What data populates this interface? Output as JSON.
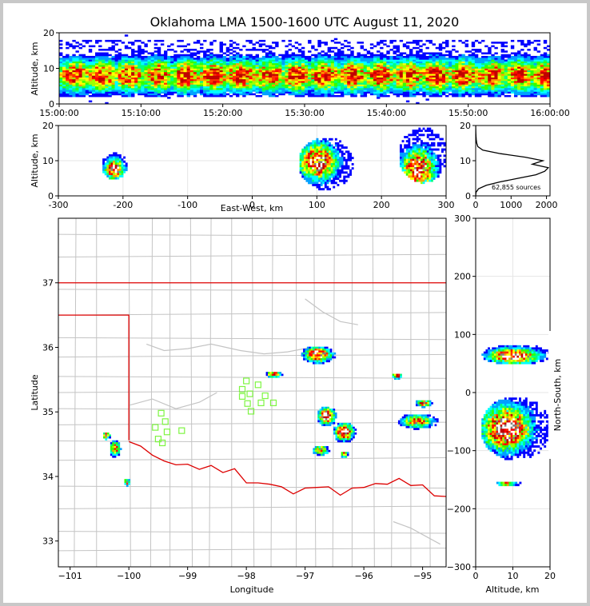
{
  "title": "Oklahoma LMA 1500-1600 UTC August 11, 2020",
  "colors": {
    "frame": "#c8c8c8",
    "state_line": "#dd0000",
    "county_line": "#c4c4c4",
    "station": "#7ef542"
  },
  "chart_data": [
    {
      "id": "time-height",
      "type": "heatmap",
      "ylabel": "Altitude, km",
      "x_ticks": [
        "15:00:00",
        "15:10:00",
        "15:20:00",
        "15:30:00",
        "15:40:00",
        "15:50:00",
        "16:00:00"
      ],
      "xlim": [
        "15:00:00",
        "16:00:00"
      ],
      "y_ticks": [
        0,
        10,
        20
      ],
      "ylim": [
        0,
        20
      ],
      "source_altitude_band_km": [
        2,
        18
      ],
      "peak_altitude_km": 8
    },
    {
      "id": "ew-height",
      "type": "heatmap",
      "xlabel": "East-West, km",
      "ylabel": "Altitude, km",
      "x_ticks": [
        -300,
        -200,
        -100,
        0,
        100,
        200,
        300
      ],
      "xlim": [
        -300,
        300
      ],
      "y_ticks": [
        0,
        10,
        20
      ],
      "ylim": [
        0,
        20
      ],
      "clusters": [
        {
          "x": [
            -235,
            -195
          ],
          "z": [
            5,
            13
          ],
          "peak": [
            -215,
            8
          ]
        },
        {
          "x": [
            70,
            155
          ],
          "z": [
            2,
            17
          ],
          "peak": [
            100,
            10
          ]
        },
        {
          "x": [
            225,
            300
          ],
          "z": [
            4,
            20
          ],
          "peak": [
            255,
            8
          ]
        }
      ]
    },
    {
      "id": "alt-hist",
      "type": "line",
      "x_ticks": [
        0,
        1000,
        2000
      ],
      "xlim": [
        0,
        2100
      ],
      "y_ticks": [
        0,
        10,
        20
      ],
      "ylim": [
        0,
        20
      ],
      "annotation": "62,855 sources",
      "altitude_km": [
        0,
        1,
        2,
        3,
        4,
        5,
        6,
        7,
        8,
        9,
        10,
        11,
        12,
        13,
        14,
        15,
        16,
        17,
        18,
        19,
        20
      ],
      "source_count": [
        0,
        10,
        80,
        300,
        700,
        1200,
        1700,
        1950,
        2050,
        1600,
        1900,
        1400,
        700,
        200,
        60,
        30,
        15,
        8,
        5,
        2,
        0
      ]
    },
    {
      "id": "plan-view",
      "type": "heatmap",
      "xlabel": "Longitude",
      "ylabel": "Latitude",
      "x_ticks": [
        -101,
        -100,
        -99,
        -98,
        -97,
        -96,
        -95
      ],
      "xlim": [
        -101.2,
        -94.6
      ],
      "y_ticks": [
        33,
        34,
        35,
        36,
        37
      ],
      "ylim": [
        32.6,
        38.0
      ],
      "clusters": [
        {
          "lon": -96.8,
          "lat": 35.9
        },
        {
          "lon": -96.65,
          "lat": 34.95
        },
        {
          "lon": -96.35,
          "lat": 34.7
        },
        {
          "lon": -96.75,
          "lat": 34.42
        },
        {
          "lon": -96.35,
          "lat": 34.36
        },
        {
          "lon": -95.1,
          "lat": 34.87
        },
        {
          "lon": -95.0,
          "lat": 35.15
        },
        {
          "lon": -100.25,
          "lat": 34.45
        },
        {
          "lon": -100.4,
          "lat": 34.65
        },
        {
          "lon": -100.05,
          "lat": 33.93
        },
        {
          "lon": -97.55,
          "lat": 35.6
        },
        {
          "lon": -95.45,
          "lat": 35.57
        }
      ],
      "stations": [
        {
          "lon": -98.0,
          "lat": 35.48
        },
        {
          "lon": -98.07,
          "lat": 35.35
        },
        {
          "lon": -97.94,
          "lat": 35.28
        },
        {
          "lon": -98.07,
          "lat": 35.24
        },
        {
          "lon": -97.8,
          "lat": 35.42
        },
        {
          "lon": -97.68,
          "lat": 35.25
        },
        {
          "lon": -97.75,
          "lat": 35.14
        },
        {
          "lon": -97.54,
          "lat": 35.14
        },
        {
          "lon": -97.98,
          "lat": 35.13
        },
        {
          "lon": -97.92,
          "lat": 35.01
        },
        {
          "lon": -99.45,
          "lat": 34.98
        },
        {
          "lon": -99.38,
          "lat": 34.85
        },
        {
          "lon": -99.55,
          "lat": 34.76
        },
        {
          "lon": -99.35,
          "lat": 34.69
        },
        {
          "lon": -99.5,
          "lat": 34.58
        },
        {
          "lon": -99.43,
          "lat": 34.52
        },
        {
          "lon": -99.1,
          "lat": 34.71
        }
      ]
    },
    {
      "id": "ns-height",
      "type": "heatmap",
      "xlabel": "Altitude, km",
      "ylabel": "North-South, km",
      "x_ticks": [
        0,
        10,
        20
      ],
      "xlim": [
        0,
        20
      ],
      "y_ticks": [
        300,
        200,
        100,
        0,
        -100,
        -200,
        -300
      ],
      "ylim": [
        -300,
        300
      ],
      "clusters": [
        {
          "z": [
            1,
            20
          ],
          "y": [
            50,
            85
          ],
          "peak": [
            10,
            65
          ]
        },
        {
          "z": [
            1,
            20
          ],
          "y": [
            -115,
            -5
          ],
          "peak": [
            8,
            -60
          ]
        },
        {
          "z": [
            5,
            12
          ],
          "y": [
            -160,
            -150
          ],
          "peak": [
            8,
            -155
          ]
        }
      ]
    }
  ]
}
